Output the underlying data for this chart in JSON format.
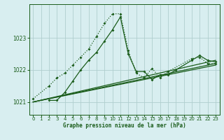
{
  "xlabel": "Graphe pression niveau de la mer (hPa)",
  "bg_color": "#d8eef0",
  "grid_color": "#b0cece",
  "line_color": "#1a5c1a",
  "xlim": [
    -0.5,
    23.5
  ],
  "ylim": [
    1020.6,
    1024.05
  ],
  "yticks": [
    1021,
    1022,
    1023
  ],
  "xticks": [
    0,
    1,
    2,
    3,
    4,
    5,
    6,
    7,
    8,
    9,
    10,
    11,
    12,
    13,
    14,
    15,
    16,
    17,
    18,
    19,
    20,
    21,
    22,
    23
  ],
  "series": [
    {
      "x": [
        0,
        2,
        3,
        4,
        5,
        6,
        7,
        8,
        9,
        10,
        11,
        12,
        13,
        14,
        15,
        16,
        17,
        20,
        21,
        22,
        23
      ],
      "y": [
        1021.1,
        1021.5,
        1021.75,
        1021.9,
        1022.15,
        1022.4,
        1022.65,
        1023.05,
        1023.45,
        1023.75,
        1023.75,
        1022.6,
        1021.9,
        1021.75,
        1022.05,
        1021.75,
        1021.95,
        1022.35,
        1022.4,
        1022.2,
        1022.2
      ],
      "style": "dotted",
      "marker": true
    },
    {
      "x": [
        2,
        3,
        4,
        5,
        6,
        7,
        8,
        9,
        10,
        11,
        12,
        13,
        14,
        15,
        16,
        17,
        18,
        20,
        21,
        22,
        23
      ],
      "y": [
        1021.05,
        1021.05,
        1021.3,
        1021.65,
        1022.0,
        1022.3,
        1022.55,
        1022.9,
        1023.25,
        1023.65,
        1022.5,
        1021.95,
        1021.95,
        1021.7,
        1021.85,
        1021.85,
        1022.0,
        1022.3,
        1022.45,
        1022.3,
        1022.25
      ],
      "style": "solid",
      "marker": true
    },
    {
      "x": [
        0,
        23
      ],
      "y": [
        1021.0,
        1022.3
      ],
      "style": "solid",
      "marker": false
    },
    {
      "x": [
        0,
        23
      ],
      "y": [
        1021.0,
        1022.2
      ],
      "style": "solid",
      "marker": false
    },
    {
      "x": [
        0,
        23
      ],
      "y": [
        1021.0,
        1022.15
      ],
      "style": "solid",
      "marker": false
    }
  ]
}
